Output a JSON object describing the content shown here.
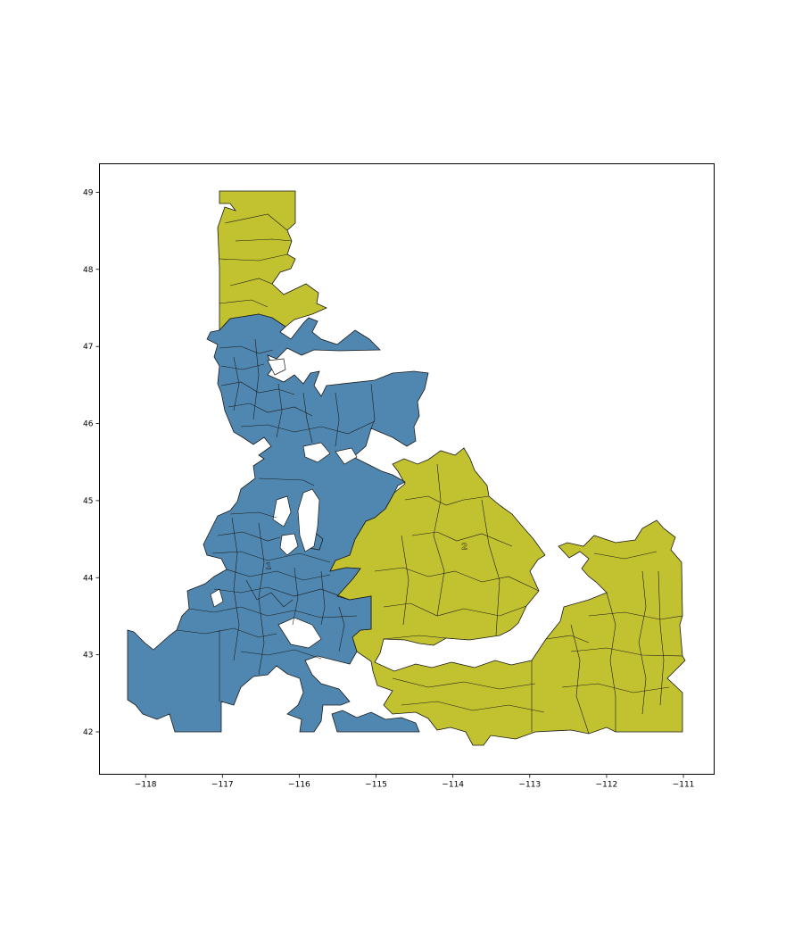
{
  "chart_data": {
    "type": "map",
    "xlabel": "",
    "ylabel": "",
    "xlim": [
      -118.6,
      -110.6
    ],
    "ylim": [
      41.45,
      49.37
    ],
    "x_ticks": [
      -118,
      -117,
      -116,
      -115,
      -114,
      -113,
      -112,
      -111
    ],
    "y_ticks": [
      42,
      43,
      44,
      45,
      46,
      47,
      48,
      49
    ],
    "x_tick_labels": [
      "−118",
      "−117",
      "−116",
      "−115",
      "−114",
      "−113",
      "−112",
      "−111"
    ],
    "y_tick_labels": [
      "42",
      "43",
      "44",
      "45",
      "46",
      "47",
      "48",
      "49"
    ],
    "grid": false,
    "districts": [
      {
        "id": "1",
        "label": "1",
        "color": "#5087b0",
        "label_lon": -116.4,
        "label_lat": 44.15
      },
      {
        "id": "2",
        "label": "2",
        "color": "#c2c231",
        "label_lon": -113.85,
        "label_lat": 44.4
      }
    ]
  }
}
